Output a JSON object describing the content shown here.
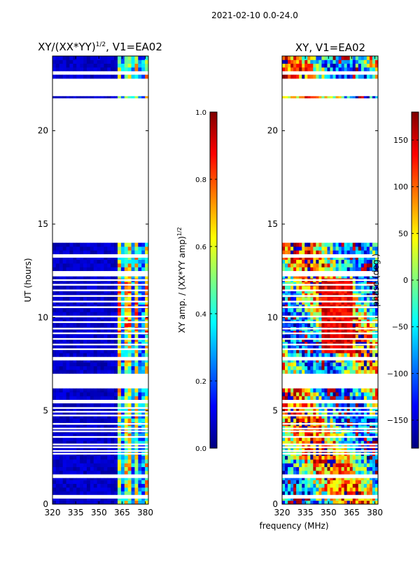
{
  "chart_data": {
    "type": "heatmap",
    "suptitle": "2021-02-10 0.0-24.0",
    "shared_xlabel": "frequency (MHz)",
    "panels": [
      {
        "title": "XY/(XX*YY)^{1/2}, V1=EA02",
        "title_main": "XY/(XX*YY)",
        "title_sup": "1/2",
        "title_tail": ", V1=EA02",
        "ylabel": "UT (hours)",
        "xlim": [
          320,
          382
        ],
        "ylim": [
          0,
          24
        ],
        "xticks": [
          "320",
          "335",
          "350",
          "365",
          "380"
        ],
        "xtick_values": [
          320,
          335,
          350,
          365,
          380
        ],
        "yticks": [
          "0",
          "5",
          "10",
          "15",
          "20"
        ],
        "ytick_values": [
          0,
          5,
          10,
          15,
          20
        ],
        "colorbar_label": "XY amp. / (XX*YY amp)^{1/2}",
        "colorbar_label_main": "XY amp. / (XX*YY amp)",
        "colorbar_label_sup": "1/2",
        "colorbar_range": [
          0.0,
          1.0
        ],
        "colorbar_ticks": [
          "0.0",
          "0.2",
          "0.4",
          "0.6",
          "0.8",
          "1.0"
        ],
        "colorbar_tick_values": [
          0.0,
          0.2,
          0.4,
          0.6,
          0.8,
          1.0
        ],
        "colormap": "jet"
      },
      {
        "title": "XY, V1=EA02",
        "ylabel": "phase (deg.)",
        "xlim": [
          320,
          382
        ],
        "ylim": [
          0,
          24
        ],
        "xticks": [
          "320",
          "335",
          "350",
          "365",
          "380"
        ],
        "xtick_values": [
          320,
          335,
          350,
          365,
          380
        ],
        "yticks": [
          "0",
          "5",
          "10",
          "15",
          "20"
        ],
        "ytick_values": [
          0,
          5,
          10,
          15,
          20
        ],
        "colorbar_range": [
          -180,
          180
        ],
        "colorbar_ticks": [
          "−150",
          "−100",
          "−50",
          "0",
          "50",
          "100",
          "150"
        ],
        "colorbar_tick_values": [
          -150,
          -100,
          -50,
          0,
          50,
          100,
          150
        ],
        "colormap": "jet"
      }
    ],
    "data_blocks_ut_hours": [
      [
        0,
        0.3
      ],
      [
        0.5,
        1.4
      ],
      [
        1.6,
        5.4
      ],
      [
        5.6,
        6.2
      ],
      [
        7.0,
        7.7
      ],
      [
        7.9,
        12.2
      ],
      [
        12.5,
        13.2
      ],
      [
        13.4,
        14.0
      ],
      [
        21.75,
        21.85
      ],
      [
        22.8,
        23.0
      ],
      [
        23.2,
        24.0
      ]
    ],
    "gap_lines_ut_hours": [
      0.45,
      1.5,
      1.55,
      2.7,
      2.85,
      3.05,
      3.2,
      3.6,
      3.9,
      4.05,
      4.3,
      4.75,
      4.95,
      5.15,
      8.3,
      8.55,
      8.85,
      9.15,
      9.4,
      9.75,
      10.05,
      10.55,
      10.85,
      11.15,
      11.45,
      11.75,
      12.0,
      13.3
    ],
    "bright_band_mhz": [
      361,
      382
    ]
  },
  "colors": {
    "cmap_stops": [
      "#00007f",
      "#0000ff",
      "#007fff",
      "#00ffff",
      "#7fff7f",
      "#ffff00",
      "#ff7f00",
      "#ff0000",
      "#7f0000"
    ]
  }
}
